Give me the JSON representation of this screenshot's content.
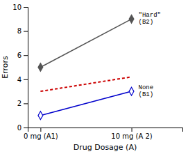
{
  "chart_data": {
    "type": "line",
    "xlabel": "Drug Dosage (A)",
    "ylabel": "Errors",
    "categories": [
      "0 mg (A1)",
      "10 mg (A 2)"
    ],
    "ylim": [
      0,
      10
    ],
    "yticks": [
      0,
      2,
      4,
      6,
      8,
      10
    ],
    "grid": false,
    "series": [
      {
        "name": "\"Hard\"\n(B2)",
        "color": "#555555",
        "marker": "diamond",
        "line_style": "solid",
        "values": [
          5,
          9
        ]
      },
      {
        "name": "None\n(B1)",
        "color": "#0000cc",
        "marker": "open-diamond",
        "line_style": "solid",
        "values": [
          1,
          3
        ]
      },
      {
        "color": "#cc0000",
        "line_style": "dashed",
        "values": [
          3,
          4.2
        ]
      }
    ]
  }
}
